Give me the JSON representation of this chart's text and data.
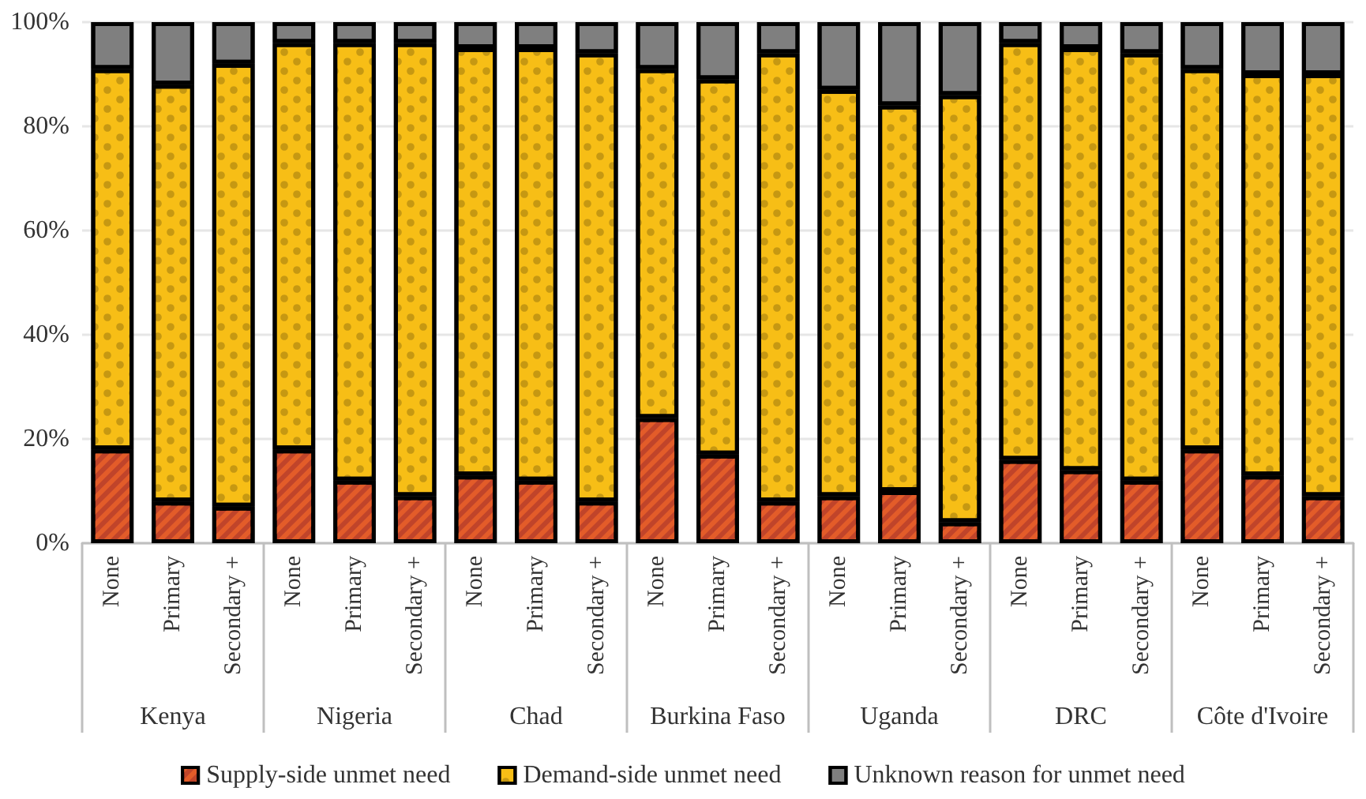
{
  "chart_data": {
    "type": "bar",
    "stacked": true,
    "categories": [
      "None",
      "Primary",
      "Secondary +",
      "None",
      "Primary",
      "Secondary +",
      "None",
      "Primary",
      "Secondary +",
      "None",
      "Primary",
      "Secondary +",
      "None",
      "Primary",
      "Secondary +",
      "None",
      "Primary",
      "Secondary +",
      "None",
      "Primary",
      "Secondary +"
    ],
    "annotations": [
      "Kenya",
      "Nigeria",
      "Chad",
      "Burkina Faso",
      "Uganda",
      "DRC",
      "Côte d'Ivoire"
    ],
    "series": [
      {
        "name": "Supply-side unmet need",
        "color": "#c0442a",
        "values": [
          18,
          8,
          7,
          18,
          12,
          9,
          13,
          12,
          8,
          24,
          17,
          8,
          9,
          10,
          4,
          16,
          14,
          12,
          18,
          13,
          9
        ]
      },
      {
        "name": "Demand-side unmet need",
        "color": "#f7be16",
        "values": [
          73,
          80,
          85,
          78,
          84,
          87,
          82,
          83,
          86,
          67,
          72,
          86,
          78,
          74,
          82,
          80,
          81,
          82,
          73,
          77,
          81
        ]
      },
      {
        "name": "Unknown reason for unmet need",
        "color": "#7f7f7f",
        "values": [
          9,
          12,
          8,
          4,
          4,
          4,
          5,
          5,
          6,
          9,
          11,
          6,
          13,
          16,
          14,
          4,
          5,
          6,
          9,
          10,
          10
        ]
      }
    ],
    "ylim": [
      0,
      100
    ],
    "yticks": [
      {
        "value": 0,
        "label": "0%"
      },
      {
        "value": 20,
        "label": "20%"
      },
      {
        "value": 40,
        "label": "40%"
      },
      {
        "value": 60,
        "label": "60%"
      },
      {
        "value": 80,
        "label": "80%"
      },
      {
        "value": 100,
        "label": "100%"
      }
    ],
    "grid": "y",
    "legend": "bottom"
  }
}
